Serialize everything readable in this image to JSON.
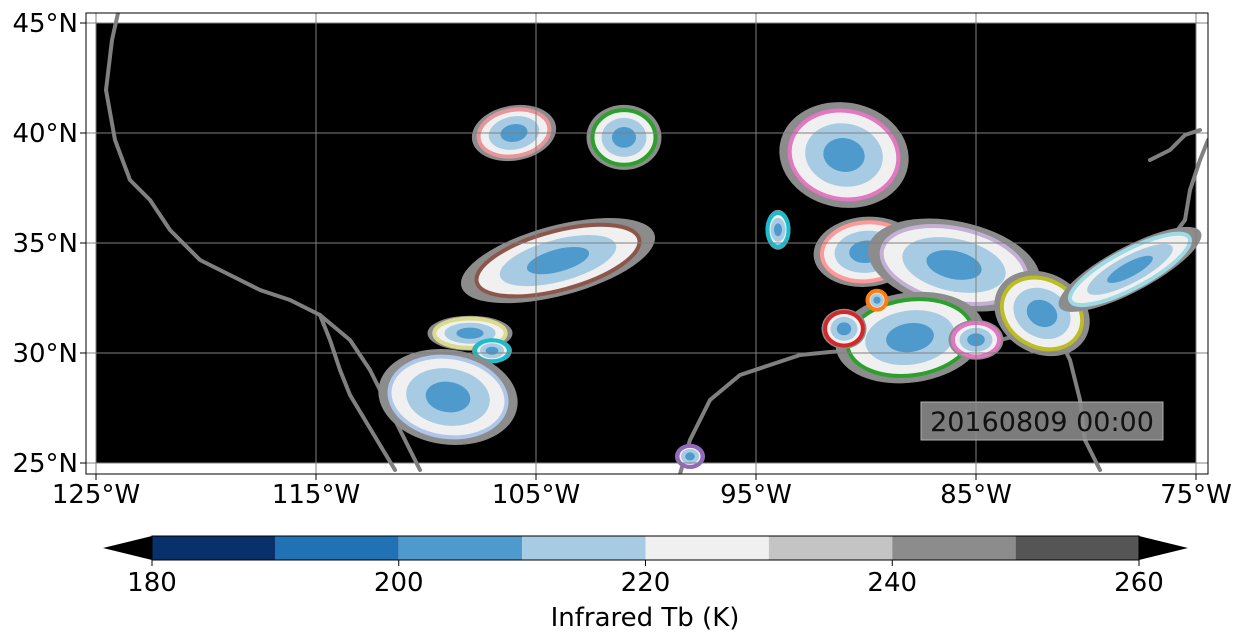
{
  "map": {
    "lon_range": [
      -125,
      -75
    ],
    "lat_range": [
      25,
      45
    ],
    "x_ticks": [
      "125°W",
      "115°W",
      "105°W",
      "95°W",
      "85°W",
      "75°W"
    ],
    "y_ticks": [
      "45°N",
      "40°N",
      "35°N",
      "30°N",
      "25°N"
    ],
    "grid": true,
    "background": "#000000",
    "timestamp": "20160809 00:00"
  },
  "colorbar": {
    "label": "Infrared Tb (K)",
    "tick_values": [
      180,
      200,
      220,
      240,
      260
    ],
    "tick_labels": [
      "180",
      "200",
      "220",
      "240",
      "260"
    ],
    "bounds": [
      180,
      190,
      200,
      210,
      220,
      230,
      240,
      250,
      260
    ],
    "colors": [
      "#08306b",
      "#2171b5",
      "#4e9acc",
      "#a6cbe3",
      "#f0f0f0",
      "#c4c4c4",
      "#8c8c8c",
      "#555555"
    ],
    "extend": "both",
    "under_color": "#000000",
    "over_color": "#000000"
  },
  "cells": [
    {
      "lon": -106,
      "lat": 40.0,
      "outline": "#e7969c"
    },
    {
      "lon": -101,
      "lat": 39.8,
      "outline": "#2ca02c"
    },
    {
      "lon": -91,
      "lat": 39.0,
      "outline": "#e377c2"
    },
    {
      "lon": -90,
      "lat": 34.6,
      "outline": "#ff9896"
    },
    {
      "lon": -86,
      "lat": 34.0,
      "outline": "#c5b0d5"
    },
    {
      "lon": -104,
      "lat": 34.2,
      "outline": "#8c564b"
    },
    {
      "lon": -108,
      "lat": 30.9,
      "outline": "#dbdb8d"
    },
    {
      "lon": -107,
      "lat": 30.1,
      "outline": "#17becf"
    },
    {
      "lon": -109,
      "lat": 28.0,
      "outline": "#aec7e8"
    },
    {
      "lon": -88,
      "lat": 30.7,
      "outline": "#2ca02c"
    },
    {
      "lon": -91,
      "lat": 31.1,
      "outline": "#d62728"
    },
    {
      "lon": -89.5,
      "lat": 32.4,
      "outline": "#ff7f0e"
    },
    {
      "lon": -82,
      "lat": 31.8,
      "outline": "#bcbd22"
    },
    {
      "lon": -78,
      "lat": 33.8,
      "outline": "#9edae5"
    },
    {
      "lon": -94,
      "lat": 35.6,
      "outline": "#17becf"
    },
    {
      "lon": -85,
      "lat": 30.6,
      "outline": "#e377c2"
    },
    {
      "lon": -98,
      "lat": 25.3,
      "outline": "#9467bd"
    }
  ]
}
